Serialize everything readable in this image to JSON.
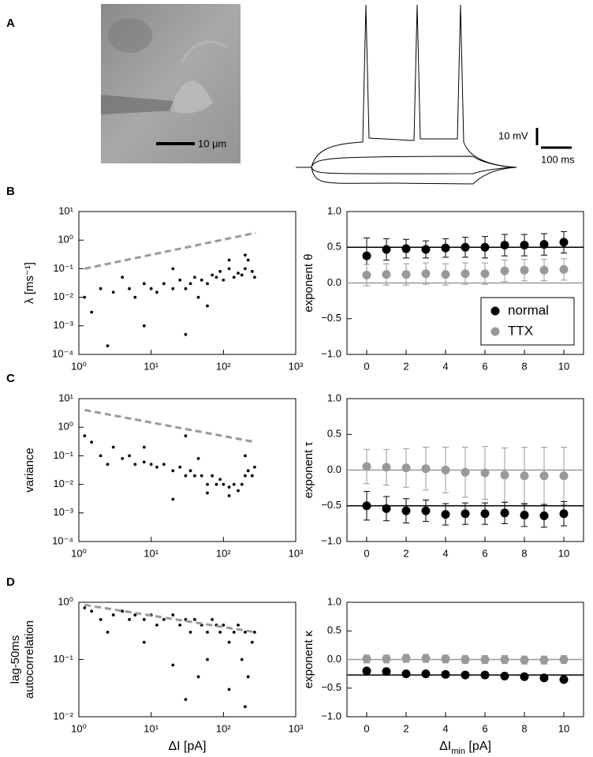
{
  "panel_labels": [
    "A",
    "B",
    "C",
    "D"
  ],
  "image": {
    "scale_label": "10 μm"
  },
  "traces": {
    "scale_y_label": "10 mV",
    "scale_x_label": "100 ms"
  },
  "chart_data": [
    {
      "type": "scatter",
      "ylabel": "λ [ms⁻¹]",
      "log_x": true,
      "log_y": true,
      "color": "#000000",
      "xlim": [
        1,
        1000
      ],
      "ylim": [
        0.0001,
        10
      ],
      "xticks": [
        {
          "value": 1,
          "label": "10⁰"
        },
        {
          "value": 10,
          "label": "10¹"
        },
        {
          "value": 100,
          "label": "10²"
        },
        {
          "value": 1000,
          "label": "10³"
        }
      ],
      "yticks": [
        {
          "value": 0.0001,
          "label": "10⁻⁴"
        },
        {
          "value": 0.001,
          "label": "10⁻³"
        },
        {
          "value": 0.01,
          "label": "10⁻²"
        },
        {
          "value": 0.1,
          "label": "10⁻¹"
        },
        {
          "value": 1,
          "label": "10⁰"
        },
        {
          "value": 10,
          "label": "10¹"
        }
      ],
      "x": [
        1.2,
        1.5,
        2,
        3,
        4,
        5,
        6,
        8,
        10,
        12,
        15,
        20,
        25,
        30,
        35,
        40,
        50,
        60,
        70,
        80,
        90,
        100,
        120,
        140,
        160,
        180,
        200,
        220,
        250,
        270,
        8,
        30,
        60,
        120,
        200,
        2.5,
        20,
        45
      ],
      "y": [
        0.01,
        0.003,
        0.02,
        0.015,
        0.05,
        0.02,
        0.01,
        0.03,
        0.02,
        0.015,
        0.03,
        0.02,
        0.04,
        0.02,
        0.03,
        0.05,
        0.04,
        0.03,
        0.06,
        0.05,
        0.08,
        0.04,
        0.1,
        0.05,
        0.07,
        0.06,
        0.1,
        0.2,
        0.08,
        0.05,
        0.001,
        0.0005,
        0.005,
        0.2,
        0.3,
        0.0002,
        0.1,
        0.01
      ],
      "fit_line": {
        "x": [
          1.2,
          280
        ],
        "y": [
          0.1,
          1.8
        ],
        "color": "#999999"
      }
    },
    {
      "type": "errorbar",
      "ylabel": "exponent θ",
      "legend": "lower right",
      "xlim": [
        -1,
        11
      ],
      "ylim": [
        -1,
        1
      ],
      "xticks": [
        0,
        2,
        4,
        6,
        8,
        10
      ],
      "yticks": [
        {
          "value": -1,
          "label": "−1.0"
        },
        {
          "value": -0.5,
          "label": "−0.5"
        },
        {
          "value": 0,
          "label": "0.0"
        },
        0.5,
        {
          "value": 1,
          "label": "1.0"
        }
      ],
      "x": [
        0,
        1,
        2,
        3,
        4,
        5,
        6,
        7,
        8,
        9,
        10
      ],
      "series": [
        {
          "name": "normal",
          "color": "#000000",
          "values": [
            0.38,
            0.47,
            0.48,
            0.47,
            0.49,
            0.5,
            0.5,
            0.53,
            0.53,
            0.54,
            0.57
          ],
          "errors": [
            0.25,
            0.15,
            0.13,
            0.12,
            0.13,
            0.14,
            0.15,
            0.15,
            0.15,
            0.15,
            0.15
          ]
        },
        {
          "name": "TTX",
          "color": "#999999",
          "values": [
            0.11,
            0.12,
            0.12,
            0.13,
            0.12,
            0.13,
            0.13,
            0.17,
            0.18,
            0.18,
            0.19
          ],
          "errors": [
            0.15,
            0.15,
            0.15,
            0.15,
            0.15,
            0.15,
            0.15,
            0.15,
            0.15,
            0.15,
            0.15
          ]
        }
      ],
      "hlines": [
        {
          "value": 0.5,
          "color": "#000000"
        },
        {
          "value": 0,
          "color": "#999999"
        }
      ]
    },
    {
      "type": "scatter",
      "ylabel": "variance",
      "log_x": true,
      "log_y": true,
      "color": "#000000",
      "xlim": [
        1,
        1000
      ],
      "ylim": [
        0.0001,
        10
      ],
      "xticks": [
        {
          "value": 1,
          "label": "10⁰"
        },
        {
          "value": 10,
          "label": "10¹"
        },
        {
          "value": 100,
          "label": "10²"
        },
        {
          "value": 1000,
          "label": "10³"
        }
      ],
      "yticks": [
        {
          "value": 0.0001,
          "label": "10⁻⁴"
        },
        {
          "value": 0.001,
          "label": "10⁻³"
        },
        {
          "value": 0.01,
          "label": "10⁻²"
        },
        {
          "value": 0.1,
          "label": "10⁻¹"
        },
        {
          "value": 1,
          "label": "10⁰"
        },
        {
          "value": 10,
          "label": "10¹"
        }
      ],
      "x": [
        1.2,
        1.5,
        2,
        3,
        4,
        5,
        6,
        8,
        10,
        12,
        15,
        20,
        25,
        30,
        35,
        40,
        50,
        60,
        70,
        80,
        90,
        100,
        120,
        140,
        160,
        180,
        200,
        220,
        250,
        270,
        8,
        30,
        60,
        120,
        200,
        2.5,
        20,
        45
      ],
      "y": [
        0.5,
        0.3,
        0.1,
        0.2,
        0.08,
        0.1,
        0.05,
        0.06,
        0.05,
        0.04,
        0.05,
        0.03,
        0.04,
        0.02,
        0.03,
        0.02,
        0.02,
        0.01,
        0.02,
        0.01,
        0.015,
        0.01,
        0.008,
        0.01,
        0.006,
        0.01,
        0.02,
        0.03,
        0.02,
        0.04,
        0.2,
        0.5,
        0.005,
        0.004,
        0.1,
        0.05,
        0.003,
        0.08
      ],
      "fit_line": {
        "x": [
          1.2,
          280
        ],
        "y": [
          4,
          0.3
        ],
        "color": "#999999"
      }
    },
    {
      "type": "errorbar",
      "ylabel": "exponent τ",
      "xlim": [
        -1,
        11
      ],
      "ylim": [
        -1,
        1
      ],
      "xticks": [
        0,
        2,
        4,
        6,
        8,
        10
      ],
      "yticks": [
        {
          "value": -1,
          "label": "−1.0"
        },
        {
          "value": -0.5,
          "label": "−0.5"
        },
        {
          "value": 0,
          "label": "0.0"
        },
        0.5,
        {
          "value": 1,
          "label": "1.0"
        }
      ],
      "x": [
        0,
        1,
        2,
        3,
        4,
        5,
        6,
        7,
        8,
        9,
        10
      ],
      "series": [
        {
          "color": "#999999",
          "values": [
            0.05,
            0.04,
            0.03,
            0.02,
            0,
            -0.03,
            -0.04,
            -0.07,
            -0.08,
            -0.08,
            -0.08
          ],
          "errors": [
            0.24,
            0.25,
            0.27,
            0.3,
            0.32,
            0.35,
            0.37,
            0.38,
            0.4,
            0.4,
            0.4
          ]
        },
        {
          "color": "#000000",
          "values": [
            -0.5,
            -0.54,
            -0.57,
            -0.57,
            -0.62,
            -0.61,
            -0.61,
            -0.6,
            -0.63,
            -0.64,
            -0.61
          ],
          "errors": [
            0.2,
            0.17,
            0.17,
            0.15,
            0.15,
            0.15,
            0.15,
            0.15,
            0.16,
            0.16,
            0.17
          ]
        }
      ],
      "hlines": [
        {
          "value": 0,
          "color": "#999999"
        },
        {
          "value": -0.5,
          "color": "#000000"
        }
      ]
    },
    {
      "type": "scatter",
      "ylabel": [
        "lag-50ms",
        "autocorrelation"
      ],
      "xlabel": "ΔI [pA]",
      "log_x": true,
      "log_y": true,
      "color": "#000000",
      "xlim": [
        1,
        1000
      ],
      "ylim": [
        0.01,
        1
      ],
      "xticks": [
        {
          "value": 1,
          "label": "10⁰"
        },
        {
          "value": 10,
          "label": "10¹"
        },
        {
          "value": 100,
          "label": "10²"
        },
        {
          "value": 1000,
          "label": "10³"
        }
      ],
      "yticks": [
        {
          "value": 0.01,
          "label": "10⁻²"
        },
        {
          "value": 0.1,
          "label": "10⁻¹"
        },
        {
          "value": 1,
          "label": "10⁰"
        }
      ],
      "x": [
        1.2,
        1.5,
        2,
        3,
        4,
        5,
        6,
        8,
        10,
        12,
        15,
        20,
        25,
        30,
        35,
        40,
        50,
        60,
        70,
        80,
        90,
        100,
        120,
        140,
        160,
        180,
        200,
        220,
        250,
        270,
        8,
        30,
        60,
        120,
        200,
        2.5,
        20,
        45
      ],
      "y": [
        0.8,
        0.7,
        0.5,
        0.6,
        0.7,
        0.5,
        0.6,
        0.5,
        0.6,
        0.4,
        0.5,
        0.6,
        0.4,
        0.5,
        0.3,
        0.5,
        0.4,
        0.3,
        0.5,
        0.4,
        0.3,
        0.4,
        0.2,
        0.3,
        0.4,
        0.1,
        0.3,
        0.05,
        0.2,
        0.3,
        0.2,
        0.02,
        0.1,
        0.03,
        0.015,
        0.3,
        0.08,
        0.05
      ],
      "fit_line": {
        "x": [
          1.2,
          280
        ],
        "y": [
          0.9,
          0.3
        ],
        "color": "#999999"
      }
    },
    {
      "type": "errorbar",
      "ylabel": "exponent κ",
      "xlabel_parts": [
        "ΔI",
        "min",
        " [pA]"
      ],
      "xlim": [
        -1,
        11
      ],
      "ylim": [
        -1,
        1
      ],
      "xticks": [
        0,
        2,
        4,
        6,
        8,
        10
      ],
      "yticks": [
        {
          "value": -1,
          "label": "−1.0"
        },
        {
          "value": -0.5,
          "label": "−0.5"
        },
        {
          "value": 0,
          "label": "0.0"
        },
        0.5,
        {
          "value": 1,
          "label": "1.0"
        }
      ],
      "x": [
        0,
        1,
        2,
        3,
        4,
        5,
        6,
        7,
        8,
        9,
        10
      ],
      "series": [
        {
          "color": "#999999",
          "values": [
            0.01,
            0.01,
            0.02,
            0.02,
            0.01,
            0,
            0,
            0,
            -0.01,
            -0.01,
            0
          ],
          "errors": [
            0.07,
            0.07,
            0.07,
            0.07,
            0.07,
            0.07,
            0.07,
            0.07,
            0.07,
            0.07,
            0.07
          ]
        },
        {
          "color": "#000000",
          "values": [
            -0.2,
            -0.21,
            -0.25,
            -0.25,
            -0.26,
            -0.27,
            -0.27,
            -0.29,
            -0.3,
            -0.32,
            -0.35
          ],
          "errors": [
            0.05,
            0.05,
            0.05,
            0.05,
            0.05,
            0.05,
            0.05,
            0.05,
            0.05,
            0.05,
            0.05
          ]
        }
      ],
      "hlines": [
        {
          "value": 0,
          "color": "#999999"
        },
        {
          "value": -0.27,
          "color": "#000000"
        }
      ]
    }
  ]
}
